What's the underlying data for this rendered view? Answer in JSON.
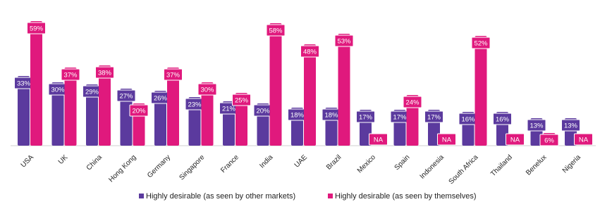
{
  "chart_data": {
    "type": "bar",
    "categories": [
      "USA",
      "UK",
      "China",
      "Hong Kong",
      "Germany",
      "Singapore",
      "France",
      "India",
      "UAE",
      "Brazil",
      "Mexico",
      "Spain",
      "Indonesia",
      "South Africa",
      "Thailand",
      "Benelux",
      "Nigeria"
    ],
    "series": [
      {
        "name": "Highly desirable (as seen by other markets)",
        "color": "#5b3a9e",
        "values": [
          33,
          30,
          29,
          27,
          26,
          23,
          21,
          20,
          18,
          18,
          17,
          17,
          17,
          16,
          16,
          13,
          13
        ],
        "value_labels": [
          "33%",
          "30%",
          "29%",
          "27%",
          "26%",
          "23%",
          "21%",
          "20%",
          "18%",
          "18%",
          "17%",
          "17%",
          "17%",
          "16%",
          "16%",
          "13%",
          "13%"
        ]
      },
      {
        "name": "Highly desirable (as seen by themselves)",
        "color": "#e0197d",
        "values": [
          59,
          37,
          38,
          20,
          37,
          30,
          25,
          58,
          48,
          53,
          null,
          24,
          null,
          52,
          null,
          6,
          null
        ],
        "value_labels": [
          "59%",
          "37%",
          "38%",
          "20%",
          "37%",
          "30%",
          "25%",
          "58%",
          "48%",
          "53%",
          "NA",
          "24%",
          "NA",
          "52%",
          "NA",
          "6%",
          "NA"
        ]
      }
    ]
  }
}
